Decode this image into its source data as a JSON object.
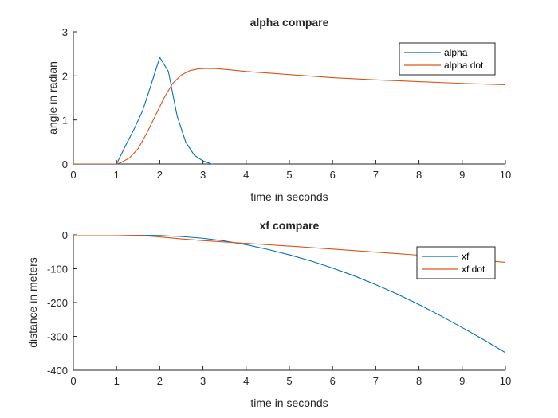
{
  "chart_data": [
    {
      "type": "line",
      "title": "alpha compare",
      "xlabel": "time in seconds",
      "ylabel": "angle in radian",
      "xlim": [
        0,
        10
      ],
      "ylim": [
        0,
        3
      ],
      "xticks": [
        "0",
        "1",
        "2",
        "3",
        "4",
        "5",
        "6",
        "7",
        "8",
        "9",
        "10"
      ],
      "yticks": [
        "0",
        "1",
        "2",
        "3"
      ],
      "legend_position": "top-right",
      "grid": false,
      "series": [
        {
          "name": "alpha",
          "color": "#0072bd",
          "x": [
            0,
            1,
            1.2,
            1.4,
            1.6,
            1.8,
            2.0,
            2.2,
            2.4,
            2.6,
            2.8,
            3.0,
            3.2,
            3.5,
            4,
            5,
            6,
            7,
            8,
            9,
            10
          ],
          "y": [
            0,
            0,
            0.4,
            0.78,
            1.2,
            1.8,
            2.42,
            2.1,
            1.1,
            0.5,
            0.2,
            0.07,
            0.0,
            -0.06,
            -0.09,
            -0.08,
            -0.06,
            -0.05,
            -0.04,
            -0.03,
            -0.02
          ]
        },
        {
          "name": "alpha dot",
          "color": "#d95319",
          "x": [
            0,
            1.0,
            1.1,
            1.3,
            1.5,
            1.7,
            1.9,
            2.1,
            2.3,
            2.5,
            2.7,
            2.9,
            3.1,
            3.3,
            3.6,
            4,
            5,
            6,
            7,
            8,
            9,
            10
          ],
          "y": [
            0,
            0,
            0.03,
            0.14,
            0.35,
            0.7,
            1.1,
            1.5,
            1.83,
            2.02,
            2.12,
            2.16,
            2.17,
            2.165,
            2.14,
            2.1,
            2.03,
            1.96,
            1.91,
            1.87,
            1.83,
            1.8
          ]
        }
      ]
    },
    {
      "type": "line",
      "title": "xf compare",
      "xlabel": "time in seconds",
      "ylabel": "distance in meters",
      "xlim": [
        0,
        10
      ],
      "ylim": [
        -400,
        0
      ],
      "xticks": [
        "0",
        "1",
        "2",
        "3",
        "4",
        "5",
        "6",
        "7",
        "8",
        "9",
        "10"
      ],
      "yticks": [
        "-400",
        "-300",
        "-200",
        "-100",
        "0"
      ],
      "legend_position": "top-right",
      "grid": false,
      "series": [
        {
          "name": "xf",
          "color": "#0072bd",
          "x": [
            0,
            1,
            1.5,
            2,
            2.5,
            3,
            3.5,
            4,
            4.5,
            5,
            5.5,
            6,
            6.5,
            7,
            7.5,
            8,
            8.5,
            9,
            9.5,
            10
          ],
          "y": [
            0,
            0,
            -0.5,
            -2,
            -5,
            -10,
            -18,
            -29,
            -43,
            -59,
            -77,
            -98,
            -121,
            -147,
            -175,
            -206,
            -239,
            -274,
            -310,
            -348
          ]
        },
        {
          "name": "xf dot",
          "color": "#d95319",
          "x": [
            0,
            1,
            1.5,
            2,
            2.5,
            3,
            3.5,
            4,
            5,
            6,
            7,
            8,
            9,
            10
          ],
          "y": [
            0,
            0,
            -1,
            -6,
            -12,
            -17,
            -21,
            -25,
            -33,
            -42,
            -51,
            -60,
            -70,
            -81
          ]
        }
      ]
    }
  ]
}
